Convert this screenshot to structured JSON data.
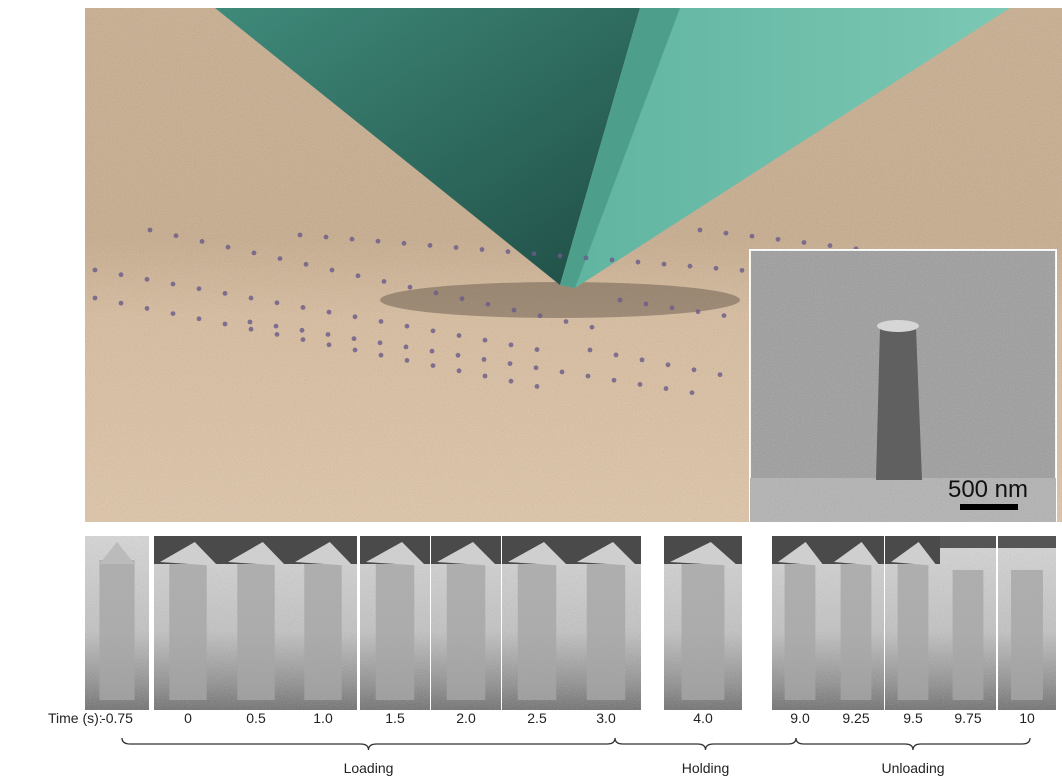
{
  "scale_bar": "500 nm",
  "time_label": "Time (s):",
  "frames": [
    "-0.75",
    "0",
    "0.5",
    "1.0",
    "1.5",
    "2.0",
    "2.5",
    "3.0",
    "4.0",
    "9.0",
    "9.25",
    "9.5",
    "9.75",
    "10"
  ],
  "phases": [
    "Loading",
    "Holding",
    "Unloading"
  ]
}
